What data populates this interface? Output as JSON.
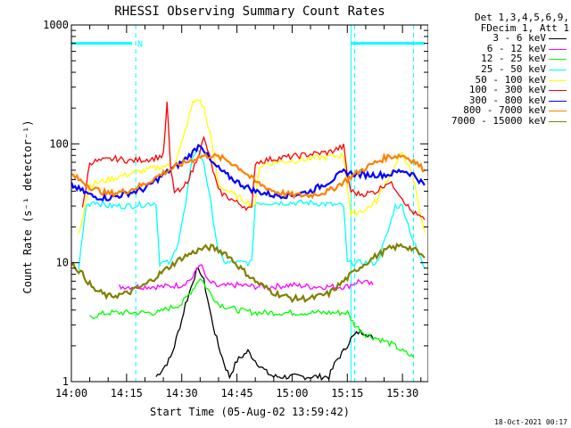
{
  "chart_data": {
    "type": "line",
    "title": "RHESSI Observing Summary Count Rates",
    "xlabel": "Start Time (05-Aug-02 13:59:42)",
    "ylabel": "Count Rate (s⁻¹ detector⁻¹)",
    "y_scale": "log",
    "ylim": [
      1,
      1000
    ],
    "xlim_minutes": [
      0,
      97
    ],
    "x_ticks": [
      {
        "min": 0,
        "label": "14:00"
      },
      {
        "min": 15,
        "label": "14:15"
      },
      {
        "min": 30,
        "label": "14:30"
      },
      {
        "min": 45,
        "label": "14:45"
      },
      {
        "min": 60,
        "label": "15:00"
      },
      {
        "min": 75,
        "label": "15:15"
      },
      {
        "min": 90,
        "label": "15:30"
      }
    ],
    "y_ticks": [
      {
        "value": 1,
        "label": "1"
      },
      {
        "value": 10,
        "label": "10"
      },
      {
        "value": 100,
        "label": "100"
      },
      {
        "value": 1000,
        "label": "1000"
      }
    ],
    "flag_bars": [
      {
        "from": 0,
        "to": 16.5,
        "label": "N"
      },
      {
        "from": 76,
        "to": 96,
        "label": ""
      }
    ],
    "flag_bar_level": 700,
    "dashed_markers_min": [
      17.5,
      77,
      93
    ],
    "series": [
      {
        "name": "3 - 6 keV",
        "color": "#000000",
        "x": [
          23,
          25,
          27,
          28,
          29,
          30,
          31,
          32,
          33,
          34,
          35,
          36,
          37,
          38,
          39,
          40,
          41,
          42,
          43,
          45,
          48,
          50,
          53,
          55,
          70,
          72,
          74,
          76,
          78,
          80,
          82
        ],
        "y": [
          1.1,
          1.3,
          1.6,
          2,
          2.6,
          3.3,
          4.5,
          5.5,
          7,
          8.5,
          8.5,
          7,
          5,
          3.5,
          2.6,
          2,
          1.6,
          1.3,
          1.1,
          1.5,
          1.8,
          1.5,
          1.2,
          1.1,
          1.1,
          1.5,
          1.8,
          2.3,
          2.6,
          2.6,
          2.3
        ]
      },
      {
        "name": "6 - 12 keV",
        "color": "#ff00ff",
        "x": [
          13,
          15,
          20,
          24,
          25,
          30,
          33,
          35,
          37,
          40,
          45,
          50,
          55,
          60,
          65,
          70,
          75,
          78,
          80,
          82
        ],
        "y": [
          6.3,
          6.3,
          6.3,
          6.3,
          6.3,
          6.5,
          7.5,
          10,
          7,
          6.3,
          6.5,
          6.3,
          6.3,
          6.5,
          6.3,
          6.3,
          6.3,
          7,
          6.8,
          6.5
        ]
      },
      {
        "name": "12 - 25 keV",
        "color": "#00ff00",
        "x": [
          5,
          10,
          15,
          20,
          24,
          25,
          30,
          33,
          35,
          37,
          40,
          45,
          50,
          55,
          60,
          65,
          70,
          75,
          77,
          80,
          85,
          88,
          90,
          93
        ],
        "y": [
          3.5,
          3.8,
          3.8,
          3.8,
          3.8,
          4,
          4.5,
          6,
          7.5,
          6,
          4.5,
          4,
          3.8,
          3.8,
          3.8,
          3.8,
          3.8,
          3.8,
          3,
          2.5,
          2.2,
          2,
          1.8,
          1.6
        ]
      },
      {
        "name": "25 - 50 keV",
        "color": "#00ffff",
        "x": [
          2,
          4,
          6,
          10,
          15,
          20,
          23,
          24,
          25,
          27,
          29,
          31,
          33,
          34.5,
          36,
          38,
          40,
          42,
          45,
          49,
          50,
          52,
          55,
          60,
          65,
          70,
          74,
          75,
          76,
          78,
          80,
          83,
          86,
          88,
          90,
          93,
          96
        ],
        "y": [
          9,
          30,
          33,
          30,
          30,
          31,
          32,
          10,
          10,
          10,
          15,
          30,
          80,
          90,
          70,
          30,
          12,
          10,
          10,
          10,
          32,
          32,
          32,
          32,
          32,
          31,
          30,
          10,
          10,
          10,
          10,
          10,
          18,
          30,
          30,
          15,
          9
        ]
      },
      {
        "name": "50 - 100 keV",
        "color": "#ffff00",
        "x": [
          2,
          5,
          10,
          15,
          20,
          25,
          28,
          30,
          32,
          33,
          34.5,
          36,
          38,
          40,
          45,
          50,
          51,
          55,
          60,
          65,
          70,
          74,
          76,
          78,
          80,
          83,
          85,
          88,
          90,
          93,
          96
        ],
        "y": [
          18,
          45,
          50,
          55,
          60,
          65,
          66,
          100,
          170,
          220,
          240,
          200,
          110,
          45,
          36,
          30,
          65,
          70,
          72,
          75,
          78,
          80,
          25,
          27,
          28,
          33,
          45,
          65,
          85,
          50,
          18
        ]
      },
      {
        "name": "100 - 300 keV",
        "color": "#ff0000",
        "x": [
          3,
          5,
          8,
          12,
          16,
          22,
          25,
          26,
          27,
          28,
          30,
          33,
          35,
          36,
          37,
          40,
          45,
          49,
          50,
          52,
          55,
          60,
          65,
          70,
          72,
          74,
          75,
          76,
          78,
          80,
          83,
          86,
          88,
          90,
          92,
          94,
          96
        ],
        "y": [
          28,
          70,
          72,
          75,
          72,
          75,
          80,
          220,
          60,
          40,
          40,
          60,
          90,
          110,
          90,
          40,
          32,
          28,
          70,
          72,
          75,
          78,
          82,
          85,
          90,
          95,
          55,
          40,
          38,
          38,
          40,
          48,
          43,
          35,
          28,
          25,
          23
        ]
      },
      {
        "name": "300 - 800 keV",
        "color": "#0000ff",
        "x": [
          0,
          3,
          6,
          10,
          15,
          20,
          25,
          30,
          33,
          35,
          36,
          38,
          42,
          46,
          50,
          55,
          60,
          65,
          70,
          74,
          78,
          82,
          86,
          90,
          93,
          96
        ],
        "y": [
          45,
          40,
          36,
          35,
          38,
          42,
          55,
          70,
          85,
          100,
          90,
          70,
          55,
          46,
          40,
          37,
          37,
          40,
          48,
          58,
          55,
          55,
          55,
          60,
          55,
          45
        ]
      },
      {
        "name": "800 - 7000 keV",
        "color": "#ff8000",
        "x": [
          0,
          3,
          6,
          10,
          15,
          20,
          25,
          30,
          35,
          38,
          42,
          46,
          50,
          55,
          60,
          65,
          70,
          74,
          78,
          82,
          86,
          90,
          93,
          96
        ],
        "y": [
          55,
          48,
          42,
          38,
          40,
          46,
          57,
          68,
          78,
          80,
          74,
          62,
          48,
          40,
          37,
          37,
          40,
          48,
          58,
          68,
          78,
          80,
          72,
          60
        ]
      },
      {
        "name": "7000 - 15000 keV",
        "color": "#808000",
        "x": [
          0,
          3,
          6,
          10,
          15,
          20,
          25,
          30,
          35,
          38,
          42,
          46,
          50,
          55,
          60,
          65,
          70,
          74,
          78,
          82,
          86,
          90,
          93,
          96
        ],
        "y": [
          10,
          8,
          6,
          5.2,
          5.5,
          6.5,
          8.5,
          11,
          13,
          13.5,
          12,
          9,
          7,
          5.6,
          5,
          5,
          5.5,
          7,
          9,
          11,
          13,
          14,
          13,
          11
        ]
      }
    ]
  },
  "legend": {
    "header_line1": "Det 1,3,4,5,6,9,",
    "header_line2": "FDecim 1, Att 1"
  },
  "footer_date": "18-Oct-2021 00:17"
}
